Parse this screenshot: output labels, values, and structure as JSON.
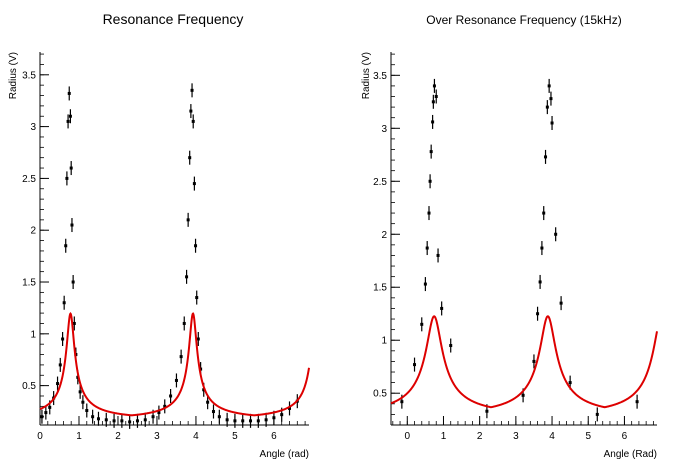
{
  "chart_data": [
    {
      "type": "scatter",
      "title": "Resonance Frequency",
      "xlabel": "Angle (rad)",
      "ylabel": "Radius (V)",
      "xlim": [
        0,
        6.9
      ],
      "ylim": [
        0.12,
        3.72
      ],
      "xticks": [
        "0",
        "1",
        "2",
        "3",
        "4",
        "5",
        "6"
      ],
      "yticks": [
        "0.5",
        "1",
        "1.5",
        "2",
        "2.5",
        "3",
        "3.5"
      ],
      "grid": false,
      "series": [
        {
          "kind": "points",
          "color": "#000000",
          "x": [
            0.05,
            0.15,
            0.25,
            0.35,
            0.45,
            0.52,
            0.58,
            0.62,
            0.66,
            0.69,
            0.72,
            0.75,
            0.78,
            0.8,
            0.82,
            0.85,
            0.88,
            0.92,
            0.97,
            1.03,
            1.1,
            1.2,
            1.35,
            1.5,
            1.7,
            1.9,
            2.1,
            2.3,
            2.5,
            2.7,
            2.9,
            3.05,
            3.2,
            3.35,
            3.5,
            3.62,
            3.7,
            3.76,
            3.8,
            3.84,
            3.87,
            3.9,
            3.93,
            3.96,
            3.99,
            4.02,
            4.06,
            4.12,
            4.2,
            4.3,
            4.45,
            4.6,
            4.8,
            5.0,
            5.2,
            5.4,
            5.6,
            5.8,
            6.0,
            6.2,
            6.4,
            6.6
          ],
          "y": [
            0.2,
            0.24,
            0.29,
            0.38,
            0.52,
            0.7,
            0.95,
            1.3,
            1.85,
            2.5,
            3.05,
            3.32,
            3.1,
            2.6,
            2.05,
            1.5,
            1.1,
            0.8,
            0.58,
            0.44,
            0.34,
            0.26,
            0.2,
            0.18,
            0.17,
            0.16,
            0.16,
            0.15,
            0.16,
            0.17,
            0.2,
            0.24,
            0.3,
            0.4,
            0.55,
            0.78,
            1.1,
            1.55,
            2.1,
            2.7,
            3.15,
            3.35,
            3.05,
            2.45,
            1.85,
            1.35,
            0.95,
            0.66,
            0.46,
            0.34,
            0.25,
            0.2,
            0.17,
            0.16,
            0.16,
            0.16,
            0.16,
            0.17,
            0.19,
            0.22,
            0.28,
            0.35
          ]
        },
        {
          "kind": "fit",
          "color": "#dd0000",
          "f0": 0.782,
          "f1": 3.924,
          "gamma": 0.048,
          "amplitude": 0.158,
          "baseline": 0.142
        }
      ]
    },
    {
      "type": "scatter",
      "title": "Over Resonance Frequency (15kHz)",
      "xlabel": "Angle (Rad)",
      "ylabel": "Radius (V)",
      "xlim": [
        -0.45,
        6.9
      ],
      "ylim": [
        0.2,
        3.72
      ],
      "xticks": [
        "0",
        "1",
        "2",
        "3",
        "4",
        "5",
        "6"
      ],
      "yticks": [
        "0.5",
        "1",
        "1.5",
        "2",
        "2.5",
        "3",
        "3.5"
      ],
      "grid": false,
      "series": [
        {
          "kind": "points",
          "color": "#000000",
          "x": [
            -0.15,
            0.2,
            0.4,
            0.5,
            0.55,
            0.6,
            0.63,
            0.66,
            0.7,
            0.72,
            0.75,
            0.8,
            0.85,
            0.95,
            1.2,
            2.2,
            3.2,
            3.5,
            3.6,
            3.67,
            3.72,
            3.77,
            3.82,
            3.87,
            3.92,
            3.97,
            4.0,
            4.1,
            4.25,
            4.5,
            5.25,
            6.35
          ],
          "y": [
            0.42,
            0.77,
            1.15,
            1.53,
            1.87,
            2.2,
            2.5,
            2.78,
            3.06,
            3.25,
            3.4,
            3.3,
            1.8,
            1.3,
            0.95,
            0.33,
            0.48,
            0.8,
            1.25,
            1.55,
            1.87,
            2.2,
            2.73,
            3.2,
            3.4,
            3.28,
            3.05,
            2.0,
            1.35,
            0.6,
            0.3,
            0.42
          ]
        },
        {
          "kind": "fit",
          "color": "#dd0000",
          "f0": 0.742,
          "f1": 3.884,
          "gamma": 0.105,
          "amplitude": 0.33,
          "baseline": 0.22
        }
      ]
    }
  ]
}
